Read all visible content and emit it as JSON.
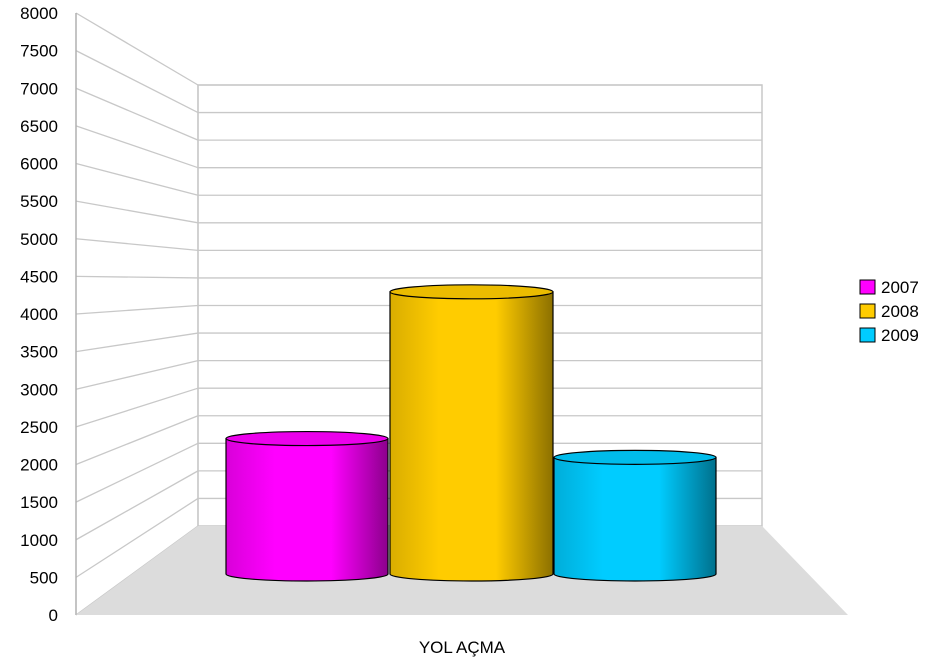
{
  "chart_data": {
    "type": "bar",
    "style": "3d-cylinder",
    "categories": [
      "YOL AÇMA"
    ],
    "series": [
      {
        "name": "2007",
        "values": [
          1800
        ],
        "color": "#ff00ff"
      },
      {
        "name": "2008",
        "values": [
          3750
        ],
        "color": "#ffcc00"
      },
      {
        "name": "2009",
        "values": [
          1550
        ],
        "color": "#00ccff"
      }
    ],
    "ylim": [
      0,
      8000
    ],
    "yticks": [
      "0",
      "500",
      "1000",
      "1500",
      "2000",
      "2500",
      "3000",
      "3500",
      "4000",
      "4500",
      "5000",
      "5500",
      "6000",
      "6500",
      "7000",
      "7500",
      "8000"
    ],
    "grid": true,
    "legend": "right"
  }
}
